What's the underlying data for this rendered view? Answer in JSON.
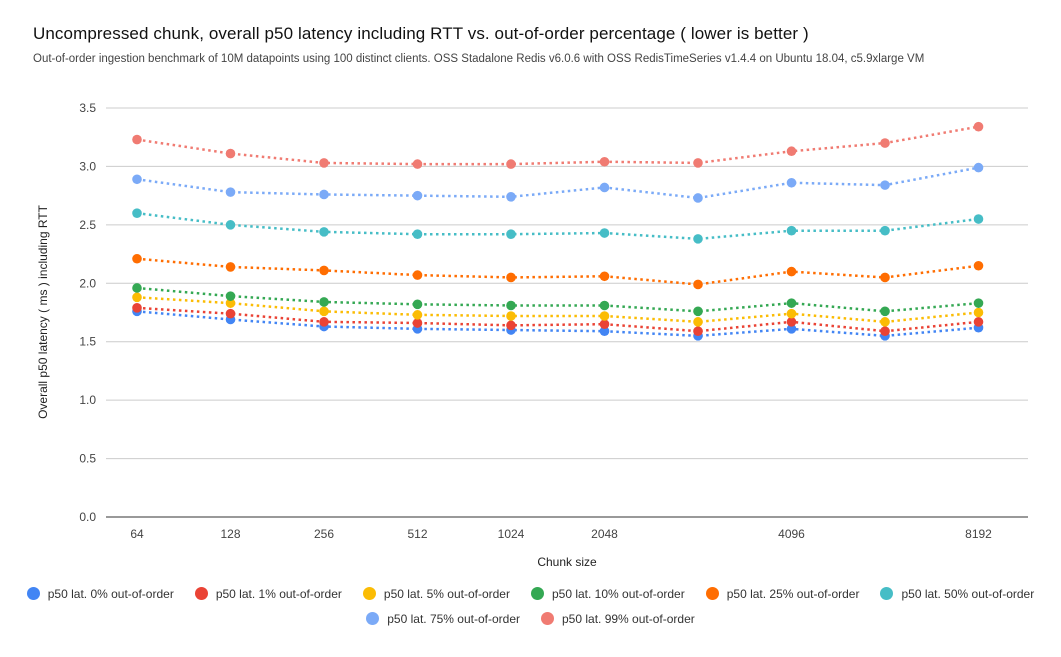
{
  "header": {
    "title": "Uncompressed chunk, overall p50 latency including RTT vs. out-of-order percentage ( lower is better )",
    "subtitle": "Out-of-order ingestion benchmark of 10M datapoints using 100 distinct clients. OSS Stadalone Redis v6.0.6 with OSS RedisTimeSeries v1.4.4 on Ubuntu 18.04, c5.9xlarge VM"
  },
  "chart_data": {
    "type": "line",
    "style": "dotted-lines-with-point-markers",
    "title": "Uncompressed chunk, overall p50 latency including RTT vs. out-of-order percentage ( lower is better )",
    "xlabel": "Chunk size",
    "ylabel": "Overall p50 latency ( ms ) including RTT",
    "ylim": [
      0,
      3.5
    ],
    "yticks": [
      "0.0",
      "0.5",
      "1.0",
      "1.5",
      "2.0",
      "2.5",
      "3.0",
      "3.5"
    ],
    "categories": [
      "64",
      "128",
      "256",
      "512",
      "1024",
      "2048",
      "",
      "4096",
      "",
      "8192"
    ],
    "grid": true,
    "legend_position": "bottom",
    "colors": {
      "grid_line": "#cccccc",
      "axis_line": "#333333",
      "tick_text": "#444444",
      "axis_title_text": "#222222"
    },
    "series": [
      {
        "name": "p50 lat. 0% out-of-order",
        "color": "#4285F4",
        "values": [
          1.76,
          1.69,
          1.63,
          1.61,
          1.6,
          1.59,
          1.55,
          1.61,
          1.55,
          1.62
        ]
      },
      {
        "name": "p50 lat. 1% out-of-order",
        "color": "#EA4335",
        "values": [
          1.79,
          1.74,
          1.67,
          1.66,
          1.64,
          1.65,
          1.59,
          1.67,
          1.59,
          1.67
        ]
      },
      {
        "name": "p50 lat. 5% out-of-order",
        "color": "#FBBC04",
        "values": [
          1.88,
          1.83,
          1.76,
          1.73,
          1.72,
          1.72,
          1.67,
          1.74,
          1.67,
          1.75
        ]
      },
      {
        "name": "p50 lat. 10% out-of-order",
        "color": "#34A853",
        "values": [
          1.96,
          1.89,
          1.84,
          1.82,
          1.81,
          1.81,
          1.76,
          1.83,
          1.76,
          1.83
        ]
      },
      {
        "name": "p50 lat. 25% out-of-order",
        "color": "#FF6D01",
        "values": [
          2.21,
          2.14,
          2.11,
          2.07,
          2.05,
          2.06,
          1.99,
          2.1,
          2.05,
          2.15
        ]
      },
      {
        "name": "p50 lat. 50% out-of-order",
        "color": "#46BDC6",
        "values": [
          2.6,
          2.5,
          2.44,
          2.42,
          2.42,
          2.43,
          2.38,
          2.45,
          2.45,
          2.55
        ]
      },
      {
        "name": "p50 lat. 75% out-of-order",
        "color": "#7BAAF7",
        "values": [
          2.89,
          2.78,
          2.76,
          2.75,
          2.74,
          2.82,
          2.73,
          2.86,
          2.84,
          2.99
        ]
      },
      {
        "name": "p50 lat. 99% out-of-order",
        "color": "#F07B72",
        "values": [
          3.23,
          3.11,
          3.03,
          3.02,
          3.02,
          3.04,
          3.03,
          3.13,
          3.2,
          3.34
        ]
      }
    ]
  }
}
